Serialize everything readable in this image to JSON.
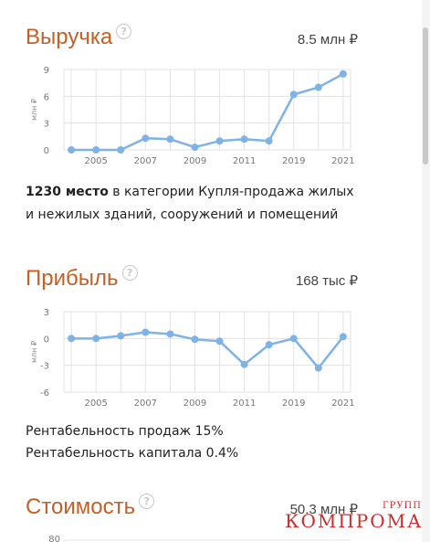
{
  "sections": {
    "revenue": {
      "title": "Выручка",
      "value": "8.5 млн ₽"
    },
    "profit": {
      "title": "Прибыль",
      "value": "168 тыс ₽"
    },
    "cost": {
      "title": "Стоимость",
      "value": "50.3 млн ₽"
    }
  },
  "rank": {
    "strong": "1230 место",
    "text": " в категории Купля-продажа жилых и нежилых зданий, сооружений и помещений"
  },
  "stats": {
    "sales_profitability": "Рентабельность продаж 15%",
    "capital_profitability": "Рентабельность капитала 0.4%"
  },
  "watermark": {
    "main": "КОМПРОМАТ",
    "sub": "ГРУПП"
  },
  "icons": {
    "help": "question-circle-icon"
  },
  "colors": {
    "accent": "#c65f24",
    "series": "#7fb2e5",
    "grid": "#e3e3e3"
  },
  "chart_data": [
    {
      "type": "line",
      "ylabel": "млн ₽",
      "x": [
        2004,
        2005,
        2006,
        2007,
        2008,
        2009,
        2010,
        2011,
        2012,
        2019,
        2020,
        2021
      ],
      "series": [
        {
          "values": [
            0,
            0,
            0,
            1.3,
            1.2,
            0.3,
            1.0,
            1.2,
            1.0,
            6.2,
            7.0,
            8.5
          ]
        }
      ],
      "x_tick_labels": [
        "2005",
        "2007",
        "2009",
        "2011",
        "2019",
        "2021"
      ],
      "y_ticks": [
        0,
        3,
        6,
        9
      ],
      "ylim": [
        0,
        9
      ],
      "grid": true
    },
    {
      "type": "line",
      "ylabel": "млн ₽",
      "x": [
        2004,
        2005,
        2006,
        2007,
        2008,
        2009,
        2010,
        2011,
        2012,
        2019,
        2020,
        2021
      ],
      "series": [
        {
          "values": [
            0,
            0,
            0.3,
            0.7,
            0.5,
            -0.1,
            -0.3,
            -2.9,
            -0.7,
            0,
            -3.3,
            0.2
          ]
        }
      ],
      "x_tick_labels": [
        "2005",
        "2007",
        "2009",
        "2011",
        "2019",
        "2021"
      ],
      "y_ticks": [
        3,
        0,
        -3,
        -6
      ],
      "ylim": [
        -6,
        3
      ],
      "grid": true
    },
    {
      "type": "line",
      "y_ticks": [
        80
      ]
    }
  ]
}
